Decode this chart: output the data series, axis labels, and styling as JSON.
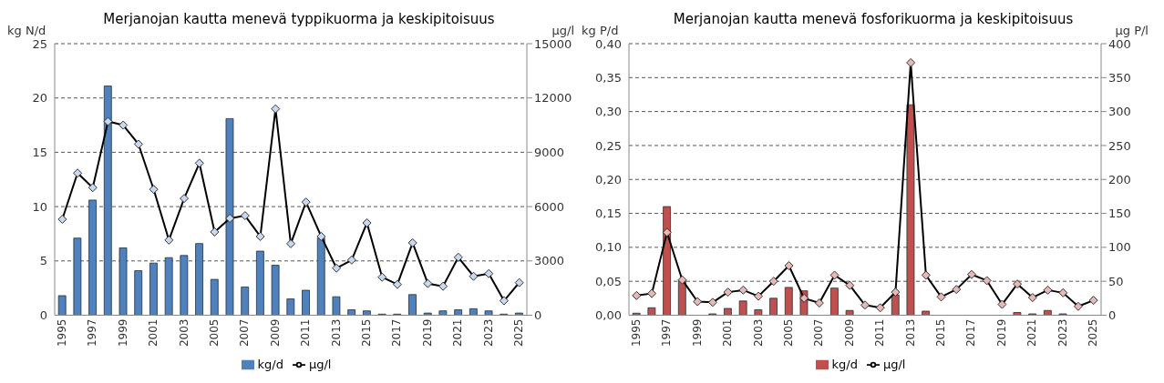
{
  "chart_data": [
    {
      "type": "bar",
      "title": "Merjanojan kautta menevä typpikuorma ja keskipitoisuus",
      "ylabel": "kg N/d",
      "y2label": "µg/l",
      "categories": [
        "1995",
        null,
        "1997",
        null,
        "1999",
        null,
        "2001",
        null,
        "2003",
        null,
        "2005",
        null,
        "2007",
        null,
        "2009",
        null,
        "2011",
        null,
        "2013",
        null,
        "2015",
        null,
        "2017",
        null,
        "2019",
        null,
        "2021",
        null,
        "2023",
        null,
        "2025"
      ],
      "series": [
        {
          "name": "kg/d",
          "color": "#4f81bd",
          "values": [
            1.8,
            7.1,
            10.6,
            21.1,
            6.2,
            4.1,
            4.8,
            5.3,
            5.5,
            6.6,
            3.3,
            18.1,
            2.6,
            5.9,
            4.6,
            1.5,
            2.3,
            7.1,
            1.7,
            0.5,
            0.4,
            0.1,
            0.1,
            1.9,
            0.2,
            0.4,
            0.5,
            0.6,
            0.4,
            0.1,
            0.2
          ]
        },
        {
          "name": "µg/l",
          "type": "line",
          "axis": "y2",
          "color": "#000000",
          "values": [
            5300,
            7850,
            7050,
            10700,
            10500,
            9450,
            6950,
            4150,
            6450,
            8400,
            4600,
            5350,
            5500,
            4350,
            11400,
            3950,
            6250,
            4350,
            2600,
            3050,
            5100,
            2100,
            1700,
            4000,
            1750,
            1600,
            3200,
            2150,
            2300,
            800,
            1800
          ]
        }
      ],
      "ylim": [
        0,
        25
      ],
      "yticks": [
        0,
        5,
        10,
        15,
        20,
        25
      ],
      "y2lim": [
        0,
        15000
      ],
      "y2ticks": [
        0,
        3000,
        6000,
        9000,
        12000,
        15000
      ],
      "grid": "y",
      "legend": "bottom",
      "marker": "diamond",
      "line_style": "solid"
    },
    {
      "type": "bar",
      "title": "Merjanojan kautta menevä fosforikuorma ja keskipitoisuus",
      "ylabel": "kg P/d",
      "y2label": "µg P/l",
      "categories": [
        "1995",
        null,
        "1997",
        null,
        "1999",
        null,
        "2001",
        null,
        "2003",
        null,
        "2005",
        null,
        "2007",
        null,
        "2009",
        null,
        "2011",
        null,
        "2013",
        null,
        "2015",
        null,
        "2017",
        null,
        "2019",
        null,
        "2021",
        null,
        "2023",
        null,
        "2025"
      ],
      "series": [
        {
          "name": "kg/d",
          "color": "#c0504d",
          "values": [
            0.003,
            0.011,
            0.16,
            0.052,
            0,
            0.002,
            0.01,
            0.021,
            0.008,
            0.025,
            0.041,
            0.036,
            0,
            0.04,
            0.007,
            0,
            0,
            0.03,
            0.31,
            0.006,
            0,
            0,
            0,
            0,
            0,
            0.004,
            0.002,
            0.007,
            0.002,
            0,
            0
          ]
        },
        {
          "name": "µg/l",
          "type": "line",
          "axis": "y2",
          "color": "#000000",
          "values": [
            29,
            32,
            122,
            52,
            20,
            19,
            34,
            37,
            28,
            50,
            73,
            25,
            18,
            59,
            44,
            15,
            11,
            34,
            372,
            59,
            27,
            38,
            60,
            51,
            16,
            46,
            26,
            37,
            33,
            13,
            22
          ]
        }
      ],
      "ylim": [
        0,
        0.4
      ],
      "yticks": [
        {
          "value": 0,
          "label": "0,00"
        },
        {
          "value": 0.05,
          "label": "0,05"
        },
        {
          "value": 0.1,
          "label": "0,10"
        },
        {
          "value": 0.15,
          "label": "0,15"
        },
        {
          "value": 0.2,
          "label": "0,20"
        },
        {
          "value": 0.25,
          "label": "0,25"
        },
        {
          "value": 0.3,
          "label": "0,30"
        },
        {
          "value": 0.35,
          "label": "0,35"
        },
        {
          "value": 0.4,
          "label": "0,40"
        }
      ],
      "y2lim": [
        0,
        400
      ],
      "y2ticks": [
        0,
        50,
        100,
        150,
        200,
        250,
        300,
        350,
        400
      ],
      "grid": "y",
      "legend": "bottom",
      "marker": "diamond",
      "line_style": "solid"
    }
  ]
}
